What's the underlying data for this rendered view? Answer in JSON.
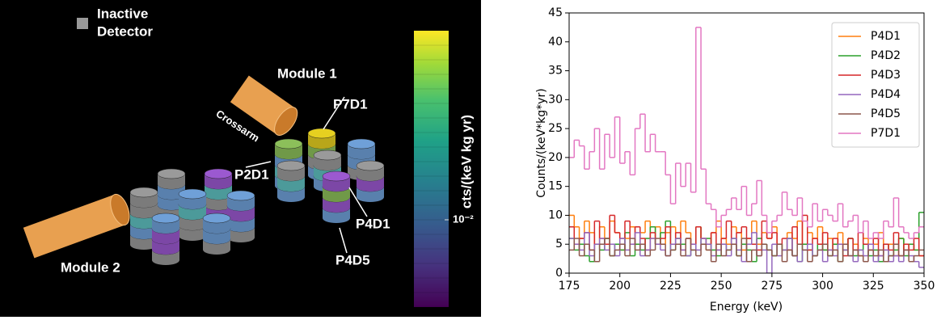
{
  "detector_map": {
    "inactive_legend": [
      "Inactive",
      "Detector"
    ],
    "module_1": "Module 1",
    "module_2": "Module 2",
    "crossarm": "Crossarm",
    "labels": [
      "P7D1",
      "P2D1",
      "P4D1",
      "P4D5"
    ],
    "colorbar": {
      "label": "cts/(keV kg yr)",
      "tick_label": "10⁻²"
    }
  },
  "chart_data": {
    "type": "step-histogram",
    "x_label": "Energy (keV)",
    "y_label": "Counts/(keV*kg*yr)",
    "bins": [
      175,
      177.5,
      180,
      182.5,
      185,
      187.5,
      190,
      192.5,
      195,
      197.5,
      200,
      202.5,
      205,
      207.5,
      210,
      212.5,
      215,
      217.5,
      220,
      222.5,
      225,
      227.5,
      230,
      232.5,
      235,
      237.5,
      240,
      242.5,
      245,
      247.5,
      250,
      252.5,
      255,
      257.5,
      260,
      262.5,
      265,
      267.5,
      270,
      272.5,
      275,
      277.5,
      280,
      282.5,
      285,
      287.5,
      290,
      292.5,
      295,
      297.5,
      300,
      302.5,
      305,
      307.5,
      310,
      312.5,
      315,
      317.5,
      320,
      322.5,
      325,
      327.5,
      330,
      332.5,
      335,
      337.5,
      340,
      342.5,
      345,
      347.5,
      350
    ],
    "xlim": [
      175,
      350
    ],
    "xticks": [
      175,
      200,
      225,
      250,
      275,
      300,
      325,
      350
    ],
    "ylim": [
      0,
      45
    ],
    "yticks": [
      0,
      5,
      10,
      15,
      20,
      25,
      30,
      35,
      40,
      45
    ],
    "legend": "upper right",
    "series": [
      {
        "name": "P4D1",
        "color": "#ff7f0e",
        "values": [
          10,
          8,
          6,
          9,
          7,
          5,
          8,
          6,
          9,
          7,
          4,
          6,
          8,
          5,
          7,
          9,
          6,
          8,
          5,
          7,
          8,
          6,
          9,
          7,
          5,
          8,
          6,
          4,
          7,
          9,
          6,
          5,
          8,
          7,
          4,
          6,
          9,
          5,
          7,
          6,
          8,
          5,
          4,
          7,
          6,
          9,
          5,
          7,
          6,
          8,
          4,
          6,
          5,
          7,
          4,
          6,
          5,
          3,
          6,
          4,
          5,
          7,
          4,
          5,
          3,
          6,
          4,
          5,
          4,
          3
        ]
      },
      {
        "name": "P4D2",
        "color": "#2ca02c",
        "values": [
          6,
          4,
          5,
          3,
          2,
          5,
          4,
          6,
          3,
          5,
          4,
          7,
          3,
          5,
          4,
          6,
          8,
          5,
          7,
          9,
          4,
          6,
          5,
          3,
          4,
          8,
          5,
          6,
          4,
          3,
          5,
          4,
          6,
          3,
          5,
          4,
          2,
          6,
          5,
          4,
          3,
          5,
          4,
          6,
          3,
          2,
          5,
          4,
          3,
          5,
          4,
          3,
          5,
          2,
          4,
          6,
          3,
          4,
          5,
          3,
          4,
          2,
          5,
          3,
          4,
          6,
          3,
          5,
          4,
          10.5
        ]
      },
      {
        "name": "P4D3",
        "color": "#d62728",
        "values": [
          8,
          5,
          6,
          7,
          4,
          9,
          6,
          5,
          10,
          7,
          6,
          9,
          5,
          8,
          6,
          4,
          7,
          5,
          6,
          8,
          5,
          7,
          4,
          6,
          5,
          8,
          6,
          5,
          7,
          4,
          6,
          9,
          5,
          7,
          8,
          6,
          5,
          4,
          9,
          6,
          7,
          5,
          6,
          4,
          8,
          5,
          10,
          4,
          6,
          5,
          7,
          4,
          6,
          5,
          3,
          6,
          4,
          7,
          5,
          4,
          6,
          3,
          5,
          4,
          7,
          3,
          5,
          4,
          6,
          3
        ]
      },
      {
        "name": "P4D4",
        "color": "#9467bd",
        "values": [
          6,
          5,
          4,
          7,
          3,
          5,
          6,
          4,
          5,
          3,
          6,
          4,
          5,
          7,
          3,
          4,
          6,
          5,
          4,
          3,
          5,
          6,
          4,
          3,
          5,
          4,
          6,
          5,
          3,
          4,
          5,
          3,
          6,
          4,
          2,
          5,
          7,
          3,
          4,
          0,
          5,
          3,
          4,
          6,
          3,
          2,
          4,
          5,
          3,
          4,
          2,
          4,
          3,
          5,
          4,
          3,
          2,
          4,
          3,
          5,
          2,
          3,
          4,
          2,
          3,
          2,
          4,
          3,
          2,
          1
        ]
      },
      {
        "name": "P4D5",
        "color": "#8c564b",
        "values": [
          4,
          6,
          3,
          5,
          4,
          2,
          5,
          6,
          3,
          4,
          5,
          3,
          6,
          4,
          5,
          3,
          4,
          6,
          5,
          3,
          4,
          5,
          3,
          6,
          4,
          3,
          5,
          4,
          2,
          5,
          3,
          4,
          5,
          3,
          6,
          2,
          4,
          3,
          5,
          4,
          3,
          5,
          2,
          4,
          3,
          5,
          4,
          2,
          3,
          4,
          5,
          3,
          4,
          2,
          5,
          3,
          4,
          3,
          2,
          4,
          3,
          4,
          2,
          3,
          5,
          3,
          4,
          2,
          3,
          4
        ]
      },
      {
        "name": "P7D1",
        "color": "#e377c2",
        "values": [
          20,
          23,
          22,
          18,
          21,
          25,
          18,
          24,
          20,
          27,
          19,
          21,
          17,
          25,
          27.5,
          21,
          24,
          21,
          21,
          17,
          12,
          19,
          15,
          19,
          14,
          42.5,
          18,
          12,
          11,
          8,
          10,
          11,
          13,
          11,
          15,
          10,
          12,
          16,
          10,
          7,
          9,
          10,
          14,
          11,
          10,
          13,
          9,
          8,
          12,
          9,
          11,
          10,
          9,
          12,
          8,
          9,
          10,
          7,
          9,
          6,
          7,
          6,
          9,
          8,
          13,
          8,
          7,
          6,
          7,
          8
        ]
      }
    ]
  }
}
